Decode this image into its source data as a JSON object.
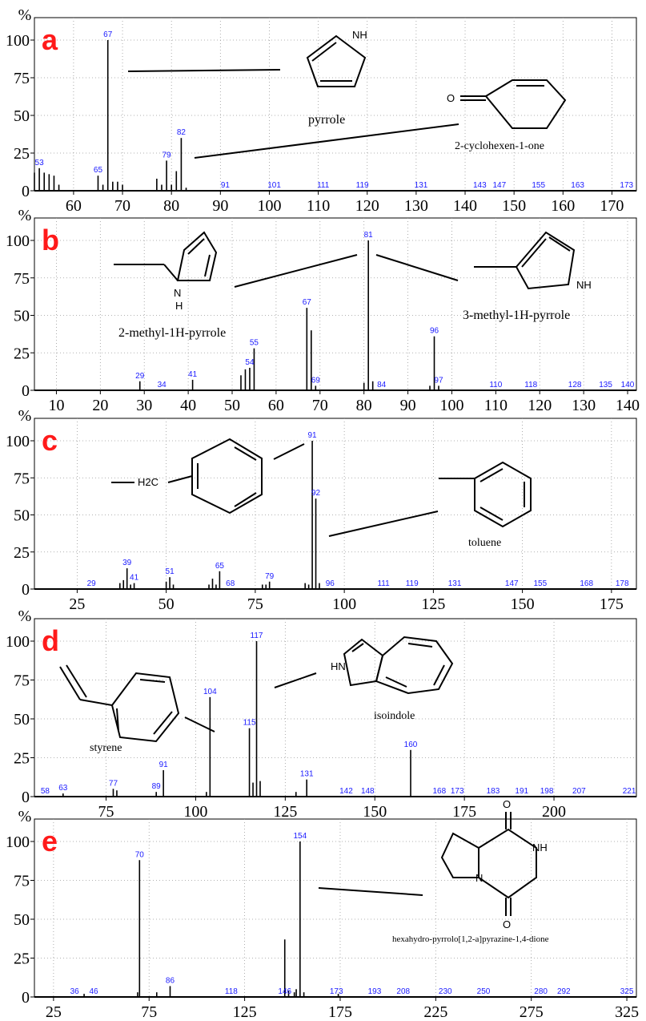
{
  "percent_symbol": "%",
  "chart_data": [
    {
      "type": "bar",
      "panel_label": "a",
      "xlim": [
        52,
        175
      ],
      "ylim": [
        0,
        100
      ],
      "xticks": [
        60,
        70,
        80,
        90,
        100,
        110,
        120,
        130,
        140,
        150,
        160,
        170
      ],
      "yticks": [
        0,
        25,
        50,
        75,
        100
      ],
      "peaks": [
        {
          "x": 52,
          "y": 12
        },
        {
          "x": 53,
          "y": 15
        },
        {
          "x": 54,
          "y": 12
        },
        {
          "x": 55,
          "y": 11
        },
        {
          "x": 56,
          "y": 10
        },
        {
          "x": 57,
          "y": 4
        },
        {
          "x": 65,
          "y": 10
        },
        {
          "x": 66,
          "y": 4
        },
        {
          "x": 67,
          "y": 100
        },
        {
          "x": 68,
          "y": 6
        },
        {
          "x": 69,
          "y": 6
        },
        {
          "x": 70,
          "y": 4
        },
        {
          "x": 77,
          "y": 8
        },
        {
          "x": 78,
          "y": 4
        },
        {
          "x": 79,
          "y": 20
        },
        {
          "x": 80,
          "y": 4
        },
        {
          "x": 81,
          "y": 13
        },
        {
          "x": 82,
          "y": 35
        },
        {
          "x": 83,
          "y": 2
        }
      ],
      "peak_labels": [
        {
          "x": 53,
          "y": 15,
          "text": "53"
        },
        {
          "x": 65,
          "y": 10,
          "text": "65"
        },
        {
          "x": 67,
          "y": 100,
          "text": "67"
        },
        {
          "x": 79,
          "y": 20,
          "text": "79"
        },
        {
          "x": 82,
          "y": 35,
          "text": "82"
        },
        {
          "x": 91,
          "y": 0,
          "text": "91"
        },
        {
          "x": 101,
          "y": 0,
          "text": "101"
        },
        {
          "x": 111,
          "y": 0,
          "text": "111"
        },
        {
          "x": 119,
          "y": 0,
          "text": "119"
        },
        {
          "x": 131,
          "y": 0,
          "text": "131"
        },
        {
          "x": 143,
          "y": 0,
          "text": "143"
        },
        {
          "x": 147,
          "y": 0,
          "text": "147"
        },
        {
          "x": 155,
          "y": 0,
          "text": "155"
        },
        {
          "x": 163,
          "y": 0,
          "text": "163"
        },
        {
          "x": 173,
          "y": 0,
          "text": "173"
        }
      ],
      "compounds": [
        "pyrrole",
        "2-cyclohexen-1-one"
      ],
      "atoms": [
        "NH",
        "O"
      ]
    },
    {
      "type": "bar",
      "panel_label": "b",
      "xlim": [
        5,
        142
      ],
      "ylim": [
        0,
        100
      ],
      "xticks": [
        10,
        20,
        30,
        40,
        50,
        60,
        70,
        80,
        90,
        100,
        110,
        120,
        130,
        140
      ],
      "yticks": [
        0,
        25,
        50,
        75,
        100
      ],
      "peaks": [
        {
          "x": 29,
          "y": 6
        },
        {
          "x": 41,
          "y": 7
        },
        {
          "x": 52,
          "y": 10
        },
        {
          "x": 53,
          "y": 14
        },
        {
          "x": 54,
          "y": 15
        },
        {
          "x": 55,
          "y": 28
        },
        {
          "x": 67,
          "y": 55
        },
        {
          "x": 68,
          "y": 40
        },
        {
          "x": 69,
          "y": 3
        },
        {
          "x": 80,
          "y": 5
        },
        {
          "x": 81,
          "y": 100
        },
        {
          "x": 82,
          "y": 6
        },
        {
          "x": 95,
          "y": 3
        },
        {
          "x": 96,
          "y": 36
        },
        {
          "x": 97,
          "y": 3
        }
      ],
      "peak_labels": [
        {
          "x": 29,
          "y": 6,
          "text": "29"
        },
        {
          "x": 34,
          "y": 0,
          "text": "34"
        },
        {
          "x": 41,
          "y": 7,
          "text": "41"
        },
        {
          "x": 54,
          "y": 15,
          "text": "54"
        },
        {
          "x": 55,
          "y": 28,
          "text": "55"
        },
        {
          "x": 67,
          "y": 55,
          "text": "67"
        },
        {
          "x": 69,
          "y": 3,
          "text": "69"
        },
        {
          "x": 81,
          "y": 100,
          "text": "81"
        },
        {
          "x": 84,
          "y": 0,
          "text": "84"
        },
        {
          "x": 96,
          "y": 36,
          "text": "96"
        },
        {
          "x": 97,
          "y": 3,
          "text": "97"
        },
        {
          "x": 110,
          "y": 0,
          "text": "110"
        },
        {
          "x": 118,
          "y": 0,
          "text": "118"
        },
        {
          "x": 128,
          "y": 0,
          "text": "128"
        },
        {
          "x": 135,
          "y": 0,
          "text": "135"
        },
        {
          "x": 140,
          "y": 0,
          "text": "140"
        }
      ],
      "compounds": [
        "2-methyl-1H-pyrrole",
        "3-methyl-1H-pyrrole"
      ],
      "atoms": [
        "N",
        "H",
        "NH"
      ]
    },
    {
      "type": "bar",
      "panel_label": "c",
      "xlim": [
        13,
        182
      ],
      "ylim": [
        0,
        100
      ],
      "xticks": [
        25,
        50,
        75,
        100,
        125,
        150,
        175
      ],
      "yticks": [
        0,
        25,
        50,
        75,
        100
      ],
      "peaks": [
        {
          "x": 37,
          "y": 4
        },
        {
          "x": 38,
          "y": 6
        },
        {
          "x": 39,
          "y": 14
        },
        {
          "x": 40,
          "y": 3
        },
        {
          "x": 41,
          "y": 4
        },
        {
          "x": 50,
          "y": 5
        },
        {
          "x": 51,
          "y": 8
        },
        {
          "x": 52,
          "y": 3
        },
        {
          "x": 62,
          "y": 3
        },
        {
          "x": 63,
          "y": 7
        },
        {
          "x": 64,
          "y": 3
        },
        {
          "x": 65,
          "y": 12
        },
        {
          "x": 77,
          "y": 3
        },
        {
          "x": 78,
          "y": 3
        },
        {
          "x": 79,
          "y": 5
        },
        {
          "x": 89,
          "y": 4
        },
        {
          "x": 90,
          "y": 3
        },
        {
          "x": 91,
          "y": 100
        },
        {
          "x": 92,
          "y": 61
        },
        {
          "x": 93,
          "y": 4
        }
      ],
      "peak_labels": [
        {
          "x": 29,
          "y": 0,
          "text": "29"
        },
        {
          "x": 39,
          "y": 14,
          "text": "39"
        },
        {
          "x": 41,
          "y": 4,
          "text": "41"
        },
        {
          "x": 51,
          "y": 8,
          "text": "51"
        },
        {
          "x": 65,
          "y": 12,
          "text": "65"
        },
        {
          "x": 68,
          "y": 0,
          "text": "68"
        },
        {
          "x": 79,
          "y": 5,
          "text": "79"
        },
        {
          "x": 91,
          "y": 100,
          "text": "91"
        },
        {
          "x": 92,
          "y": 61,
          "text": "92"
        },
        {
          "x": 96,
          "y": 0,
          "text": "96"
        },
        {
          "x": 111,
          "y": 0,
          "text": "111"
        },
        {
          "x": 119,
          "y": 0,
          "text": "119"
        },
        {
          "x": 131,
          "y": 0,
          "text": "131"
        },
        {
          "x": 147,
          "y": 0,
          "text": "147"
        },
        {
          "x": 155,
          "y": 0,
          "text": "155"
        },
        {
          "x": 168,
          "y": 0,
          "text": "168"
        },
        {
          "x": 178,
          "y": 0,
          "text": "178"
        }
      ],
      "compounds": [
        "toluene"
      ],
      "atoms": [
        "H2C"
      ]
    },
    {
      "type": "bar",
      "panel_label": "d",
      "xlim": [
        55,
        223
      ],
      "ylim": [
        0,
        100
      ],
      "xticks": [
        75,
        100,
        125,
        150,
        175,
        200
      ],
      "yticks": [
        0,
        25,
        50,
        75,
        100
      ],
      "peaks": [
        {
          "x": 63,
          "y": 2
        },
        {
          "x": 77,
          "y": 5
        },
        {
          "x": 78,
          "y": 4
        },
        {
          "x": 89,
          "y": 3
        },
        {
          "x": 91,
          "y": 17
        },
        {
          "x": 103,
          "y": 3
        },
        {
          "x": 104,
          "y": 64
        },
        {
          "x": 115,
          "y": 44
        },
        {
          "x": 116,
          "y": 9
        },
        {
          "x": 117,
          "y": 100
        },
        {
          "x": 118,
          "y": 10
        },
        {
          "x": 128,
          "y": 3
        },
        {
          "x": 131,
          "y": 11
        },
        {
          "x": 160,
          "y": 30
        }
      ],
      "peak_labels": [
        {
          "x": 58,
          "y": 0,
          "text": "58"
        },
        {
          "x": 63,
          "y": 2,
          "text": "63"
        },
        {
          "x": 77,
          "y": 5,
          "text": "77"
        },
        {
          "x": 89,
          "y": 3,
          "text": "89"
        },
        {
          "x": 91,
          "y": 17,
          "text": "91"
        },
        {
          "x": 104,
          "y": 64,
          "text": "104"
        },
        {
          "x": 115,
          "y": 44,
          "text": "115"
        },
        {
          "x": 117,
          "y": 100,
          "text": "117"
        },
        {
          "x": 131,
          "y": 11,
          "text": "131"
        },
        {
          "x": 142,
          "y": 0,
          "text": "142"
        },
        {
          "x": 148,
          "y": 0,
          "text": "148"
        },
        {
          "x": 160,
          "y": 30,
          "text": "160"
        },
        {
          "x": 168,
          "y": 0,
          "text": "168"
        },
        {
          "x": 173,
          "y": 0,
          "text": "173"
        },
        {
          "x": 183,
          "y": 0,
          "text": "183"
        },
        {
          "x": 191,
          "y": 0,
          "text": "191"
        },
        {
          "x": 198,
          "y": 0,
          "text": "198"
        },
        {
          "x": 207,
          "y": 0,
          "text": "207"
        },
        {
          "x": 221,
          "y": 0,
          "text": "221"
        }
      ],
      "compounds": [
        "styrene",
        "isoindole"
      ],
      "atoms": [
        "HN"
      ]
    },
    {
      "type": "bar",
      "panel_label": "e",
      "xlim": [
        15,
        330
      ],
      "ylim": [
        0,
        100
      ],
      "xticks": [
        25,
        75,
        125,
        175,
        225,
        275,
        325
      ],
      "yticks": [
        0,
        25,
        50,
        75,
        100
      ],
      "peaks": [
        {
          "x": 41,
          "y": 2
        },
        {
          "x": 69,
          "y": 3
        },
        {
          "x": 70,
          "y": 88
        },
        {
          "x": 79,
          "y": 3
        },
        {
          "x": 86,
          "y": 7
        },
        {
          "x": 146,
          "y": 37
        },
        {
          "x": 148,
          "y": 4
        },
        {
          "x": 151,
          "y": 3
        },
        {
          "x": 152,
          "y": 5
        },
        {
          "x": 154,
          "y": 100
        },
        {
          "x": 156,
          "y": 3
        },
        {
          "x": 174,
          "y": 2
        }
      ],
      "peak_labels": [
        {
          "x": 36,
          "y": 0,
          "text": "36"
        },
        {
          "x": 46,
          "y": 0,
          "text": "46"
        },
        {
          "x": 70,
          "y": 88,
          "text": "70"
        },
        {
          "x": 86,
          "y": 7,
          "text": "86"
        },
        {
          "x": 118,
          "y": 0,
          "text": "118"
        },
        {
          "x": 146,
          "y": 0,
          "text": "146"
        },
        {
          "x": 154,
          "y": 100,
          "text": "154"
        },
        {
          "x": 173,
          "y": 0,
          "text": "173"
        },
        {
          "x": 193,
          "y": 0,
          "text": "193"
        },
        {
          "x": 208,
          "y": 0,
          "text": "208"
        },
        {
          "x": 230,
          "y": 0,
          "text": "230"
        },
        {
          "x": 250,
          "y": 0,
          "text": "250"
        },
        {
          "x": 280,
          "y": 0,
          "text": "280"
        },
        {
          "x": 292,
          "y": 0,
          "text": "292"
        },
        {
          "x": 325,
          "y": 0,
          "text": "325"
        }
      ],
      "compounds": [
        "hexahydro-pyrrolo[1,2-a]pyrazine-1,4-dione"
      ],
      "atoms": [
        "O",
        "NH",
        "N",
        "O"
      ]
    }
  ]
}
